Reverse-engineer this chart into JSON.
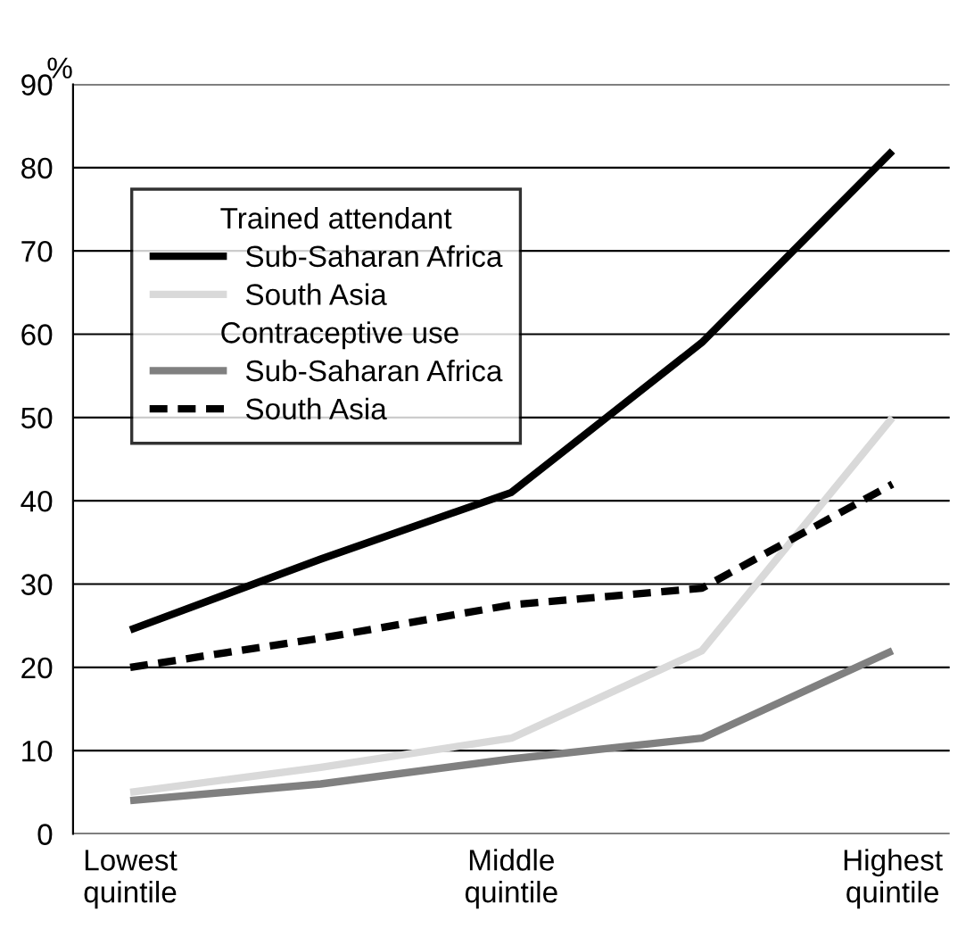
{
  "chart_data": {
    "type": "line",
    "ylabel": "%",
    "legend_title": "Trained attendant",
    "annotations": [
      "Contraceptive use"
    ],
    "categories": [
      "Lowest\nquintile",
      null,
      "Middle\nquintile",
      null,
      "Highest\nquintile"
    ],
    "series": [
      {
        "name": "Sub-Saharan Africa",
        "color": "#000000",
        "line_style": "solid",
        "values": [
          24.5,
          33,
          41,
          59,
          82
        ]
      },
      {
        "name": "South Asia",
        "color": "#d9d9d9",
        "line_style": "solid",
        "values": [
          5,
          8,
          11.5,
          22,
          50
        ]
      },
      {
        "name": "Sub-Saharan Africa",
        "color": "#808080",
        "line_style": "solid",
        "values": [
          4,
          6,
          9,
          11.5,
          22
        ]
      },
      {
        "name": "South Asia",
        "color": "#000000",
        "line_style": "dashed",
        "values": [
          20,
          23.5,
          27.5,
          29.5,
          42
        ]
      }
    ],
    "ylim": [
      0,
      90
    ],
    "yticks": [
      0,
      10,
      20,
      30,
      40,
      50,
      60,
      70,
      80,
      90
    ],
    "grid": "y",
    "legend": "top left",
    "marker": "none"
  }
}
